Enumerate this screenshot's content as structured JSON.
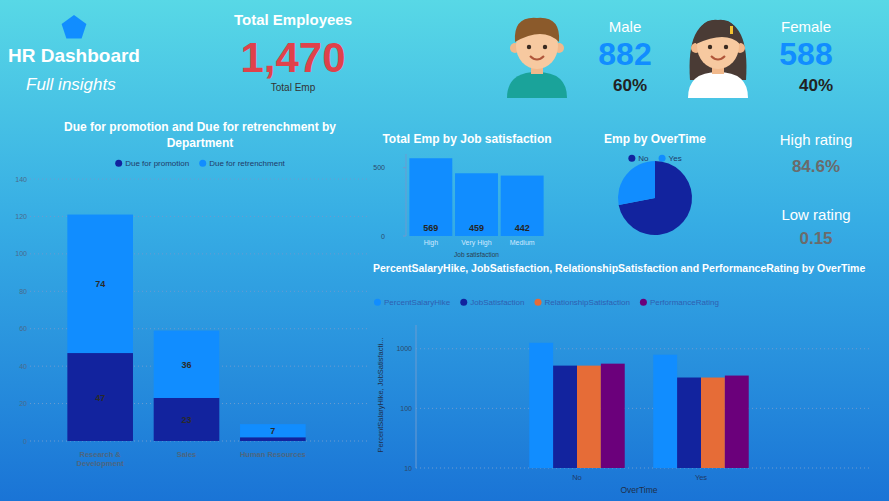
{
  "header": {
    "title": "HR Dashboard",
    "subtitle": "Full insights"
  },
  "kpis": {
    "total": {
      "label": "Total Employees",
      "value": "1,470",
      "caption": "Total Emp"
    },
    "male": {
      "label": "Male",
      "count": "882",
      "share": "60%"
    },
    "female": {
      "label": "Female",
      "count": "588",
      "share": "40%"
    },
    "high_rating": {
      "label": "High rating",
      "value": "84.6%"
    },
    "low_rating": {
      "label": "Low rating",
      "value": "0.15"
    }
  },
  "chart_data": [
    {
      "type": "bar",
      "title": "Due for promotion and Due for retrenchment by Department",
      "categories": [
        "Research & Development",
        "Sales",
        "Human Resources"
      ],
      "series": [
        {
          "name": "Due for promotion",
          "color": "#12239e",
          "values": [
            47,
            23,
            2
          ],
          "value_labels": [
            "47",
            "23",
            null
          ]
        },
        {
          "name": "Due for retrenchment",
          "color": "#118dff",
          "values": [
            74,
            36,
            7
          ]
        }
      ],
      "stacked": true,
      "data_labels": true,
      "ylim": [
        0,
        140
      ],
      "yticks": [
        0,
        20,
        40,
        60,
        80,
        100,
        120,
        140
      ],
      "grid": true,
      "legend": "top"
    },
    {
      "type": "bar",
      "title": "Total Emp by Job satisfaction",
      "categories": [
        "High",
        "Very High",
        "Medium"
      ],
      "values": [
        569,
        459,
        442
      ],
      "color": "#118dff",
      "x_label": "Job satisfaction",
      "ylim": [
        0,
        600
      ],
      "yticks": [
        0,
        500
      ],
      "grid": false,
      "data_labels": true
    },
    {
      "type": "pie",
      "title": "Emp by OverTime",
      "categories": [
        "No",
        "Yes"
      ],
      "values": [
        72,
        28
      ],
      "colors": [
        "#12239e",
        "#118dff"
      ],
      "legend": "top"
    },
    {
      "type": "bar",
      "title": "PercentSalaryHike, JobSatisfaction, RelationshipSatisfaction and PerformanceRating by OverTime",
      "categories": [
        "No",
        "Yes"
      ],
      "series": [
        {
          "name": "PercentSalaryHike",
          "color": "#118dff",
          "values": [
            1259,
            794
          ]
        },
        {
          "name": "JobSatisfaction",
          "color": "#12239e",
          "values": [
            521,
            329
          ]
        },
        {
          "name": "RelationshipSatisfaction",
          "color": "#e66c37",
          "values": [
            521,
            329
          ]
        },
        {
          "name": "PerformanceRating",
          "color": "#6b007b",
          "values": [
            562,
            355
          ]
        }
      ],
      "x_label": "OverTime",
      "y_label": "PercentSalaryHike, JobSatisfacti...",
      "log": "y",
      "ylim": [
        10,
        2500
      ],
      "yticks": [
        10,
        100,
        1000
      ],
      "grid": true,
      "legend": "top"
    }
  ]
}
